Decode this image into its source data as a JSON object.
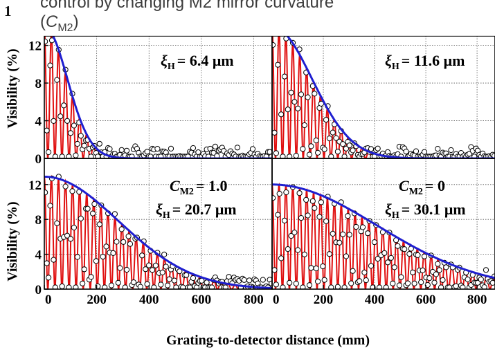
{
  "caption": {
    "number": "1",
    "line1": "control by changing M2 mirror curvature",
    "line2_open": "(",
    "line2_var": "C",
    "line2_sub": "M2",
    "line2_close": ")"
  },
  "figure": {
    "ylabel": "Visibility (%)",
    "xlabel": "Grating-to-detector distance (mm)",
    "colors": {
      "fit": "#1f1fd0",
      "oscillation": "#e01010",
      "points": "#000000",
      "grid": "#555555"
    }
  },
  "chart_data": [
    {
      "type": "line",
      "panel": "top-left",
      "annotations": {
        "xi_label": "ξ",
        "xi_sub": "H",
        "xi_value": "= 6.4 μm",
        "cm2_value": ""
      },
      "xlim": [
        0,
        870
      ],
      "ylim": [
        0,
        13
      ],
      "yticks": [
        "0",
        "4",
        "8",
        "12"
      ],
      "xticks": [],
      "envelope": {
        "amplitude": 14.0,
        "coherence_length_mm": 130
      },
      "series": [
        {
          "role": "envelope",
          "x": [
            0,
            50,
            100,
            150,
            200,
            250,
            300,
            350
          ],
          "y": [
            14.0,
            12.1,
            8.0,
            4.3,
            1.8,
            0.6,
            0.2,
            0.0
          ]
        },
        {
          "role": "oscillation-fit",
          "period_mm": 27
        },
        {
          "role": "measured",
          "marker": "open-circle"
        }
      ]
    },
    {
      "type": "line",
      "panel": "top-right",
      "annotations": {
        "xi_label": "ξ",
        "xi_sub": "H",
        "xi_value": "= 11.6 μm",
        "cm2_value": ""
      },
      "xlim": [
        0,
        870
      ],
      "ylim": [
        0,
        13
      ],
      "yticks": [],
      "xticks": [],
      "envelope": {
        "amplitude": 14.0,
        "coherence_length_mm": 230
      },
      "series": [
        {
          "role": "envelope",
          "x": [
            0,
            100,
            200,
            300,
            400,
            500,
            600
          ],
          "y": [
            14.0,
            12.6,
            8.4,
            4.3,
            1.7,
            0.5,
            0.1
          ]
        },
        {
          "role": "oscillation-fit",
          "period_mm": 27
        },
        {
          "role": "measured",
          "marker": "open-circle"
        }
      ]
    },
    {
      "type": "line",
      "panel": "bottom-left",
      "annotations": {
        "xi_label": "ξ",
        "xi_sub": "H",
        "xi_value": "= 20.7 μm",
        "cm2_label": "C",
        "cm2_sub": "M2",
        "cm2_value": "= 1.0"
      },
      "xlim": [
        0,
        870
      ],
      "ylim": [
        0,
        15
      ],
      "yticks": [
        "0",
        "4",
        "8",
        "12"
      ],
      "xticks": [
        "0",
        "200",
        "400",
        "600",
        "800"
      ],
      "envelope": {
        "amplitude": 12.9,
        "coherence_length_mm": 420
      },
      "series": [
        {
          "role": "envelope",
          "x": [
            0,
            100,
            200,
            300,
            400,
            500,
            600,
            700,
            800,
            870
          ],
          "y": [
            12.9,
            12.5,
            11.1,
            9.2,
            7.2,
            5.2,
            3.5,
            2.2,
            1.3,
            0.5
          ]
        },
        {
          "role": "oscillation-fit",
          "period_mm": 27
        },
        {
          "role": "measured",
          "marker": "open-circle"
        }
      ]
    },
    {
      "type": "line",
      "panel": "bottom-right",
      "annotations": {
        "xi_label": "ξ",
        "xi_sub": "H",
        "xi_value": "= 30.1 μm",
        "cm2_label": "C",
        "cm2_sub": "M2",
        "cm2_value": "= 0"
      },
      "xlim": [
        0,
        870
      ],
      "ylim": [
        0,
        15
      ],
      "yticks": [],
      "xticks": [
        "0",
        "200",
        "400",
        "600",
        "800"
      ],
      "envelope": {
        "amplitude": 12.0,
        "coherence_length_mm": 610
      },
      "series": [
        {
          "role": "envelope",
          "x": [
            0,
            100,
            200,
            300,
            400,
            500,
            600,
            700,
            800,
            870
          ],
          "y": [
            12.0,
            11.8,
            11.1,
            10.0,
            8.8,
            7.5,
            6.2,
            5.0,
            3.8,
            2.4
          ]
        },
        {
          "role": "oscillation-fit",
          "period_mm": 27
        },
        {
          "role": "measured",
          "marker": "open-circle"
        }
      ]
    }
  ]
}
